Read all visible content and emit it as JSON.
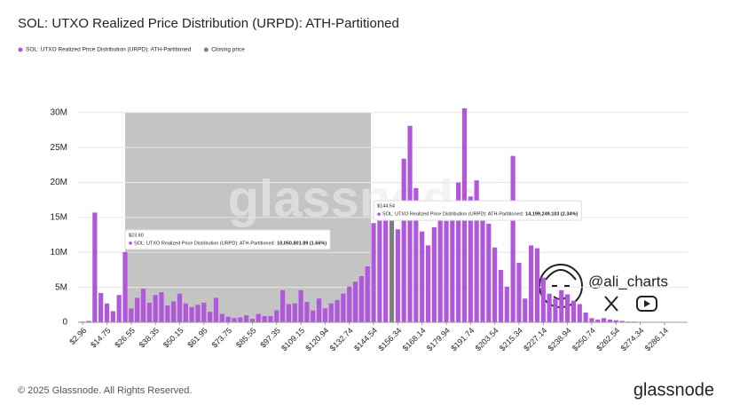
{
  "chart_data": {
    "type": "bar",
    "title": "SOL: UTXO Realized Price Distribution (URPD): ATH-Partitioned",
    "categories": [
      "$2.96",
      null,
      null,
      null,
      "$14.75",
      null,
      null,
      null,
      "$26.55",
      null,
      null,
      null,
      "$38.35",
      null,
      null,
      null,
      "$50.15",
      null,
      null,
      null,
      "$61.95",
      null,
      null,
      null,
      "$73.75",
      null,
      null,
      null,
      "$85.55",
      null,
      null,
      null,
      "$97.35",
      null,
      null,
      null,
      "$109.15",
      null,
      null,
      null,
      "$120.94",
      null,
      null,
      null,
      "$132.74",
      null,
      null,
      null,
      "$144.54",
      null,
      null,
      null,
      "$156.34",
      null,
      null,
      null,
      "$168.14",
      null,
      null,
      null,
      "$179.94",
      null,
      null,
      null,
      "$191.74",
      null,
      null,
      null,
      "$203.54",
      null,
      null,
      null,
      "$215.34",
      null,
      null,
      null,
      "$227.14",
      null,
      null,
      null,
      "$238.94",
      null,
      null,
      null,
      "$250.74",
      null,
      null,
      null,
      "$262.54",
      null,
      null,
      null,
      "$274.34",
      null,
      null,
      null,
      "$286.14",
      null,
      null,
      null
    ],
    "series": [
      {
        "name": "SOL: UTXO Realized Price Distribution (URPD): ATH-Partitioned",
        "color": "#b157dc",
        "values": [
          100000,
          200000,
          15700000,
          4200000,
          2700000,
          1600000,
          3900000,
          10050801.89,
          2000000,
          3500000,
          4800000,
          2800000,
          3900000,
          4300000,
          2400000,
          3000000,
          4100000,
          2700000,
          2200000,
          2500000,
          2800000,
          1500000,
          3500000,
          1200000,
          800000,
          600000,
          700000,
          1000000,
          500000,
          1200000,
          900000,
          900000,
          1700000,
          4600000,
          2600000,
          2700000,
          4600000,
          2900000,
          1700000,
          3400000,
          2000000,
          2700000,
          3200000,
          4100000,
          5100000,
          5800000,
          6600000,
          8000000,
          14199249.103,
          15800000,
          15200000,
          null,
          13300000,
          23400000,
          28100000,
          19200000,
          13000000,
          11000000,
          13600000,
          17000000,
          14500000,
          15400000,
          20000000,
          30600000,
          18000000,
          20300000,
          17400000,
          14100000,
          10700000,
          7500000,
          5100000,
          23800000,
          8500000,
          3400000,
          11000000,
          10600000,
          6400000,
          4100000,
          3400000,
          4600000,
          4000000,
          3100000,
          2600000,
          1400000,
          600000,
          400000,
          600000,
          400000,
          300000,
          200000,
          100000,
          100000,
          50000,
          50000,
          30000,
          30000,
          20000,
          20000,
          10000,
          10000
        ]
      },
      {
        "name": "Closing price",
        "color": "#808080",
        "values": [
          null,
          null,
          null,
          null,
          null,
          null,
          null,
          null,
          null,
          null,
          null,
          null,
          null,
          null,
          null,
          null,
          null,
          null,
          null,
          null,
          null,
          null,
          null,
          null,
          null,
          null,
          null,
          null,
          null,
          null,
          null,
          null,
          null,
          null,
          null,
          null,
          null,
          null,
          null,
          null,
          null,
          null,
          null,
          null,
          null,
          null,
          null,
          null,
          null,
          null,
          null,
          15600000,
          null,
          null,
          null,
          null,
          null,
          null,
          null,
          null,
          null,
          null,
          null,
          null,
          null,
          null,
          null,
          null,
          null,
          null,
          null,
          null,
          null,
          null,
          null,
          null,
          null,
          null,
          null,
          null,
          null,
          null,
          null,
          null,
          null,
          null,
          null,
          null,
          null,
          null,
          null,
          null,
          null,
          null,
          null,
          null,
          null,
          null,
          null,
          null
        ]
      }
    ],
    "ylim": [
      0,
      32000000
    ],
    "yticks": [
      0,
      {
        "value": 5000000,
        "label": "5M"
      },
      {
        "value": 10000000,
        "label": "10M"
      },
      {
        "value": 15000000,
        "label": "15M"
      },
      {
        "value": 20000000,
        "label": "20M"
      },
      {
        "value": 25000000,
        "label": "25M"
      },
      {
        "value": 30000000,
        "label": "30M"
      }
    ],
    "grid": true,
    "tooltips": [
      {
        "index": 7,
        "price": "$23.60",
        "label": "SOL: UTXO Realized Price Distribution (URPD): ATH-Partitioned:",
        "value": "10,050,801.89 (1.66%)"
      },
      {
        "index": 48,
        "price": "$144.54",
        "label": "SOL: UTXO Realized Price Distribution (URPD): ATH-Partitioned:",
        "value": "14,199,249.103 (2.34%)"
      }
    ],
    "watermark": "glassnode",
    "handle": "@ali_charts",
    "copyright": "© 2025 Glassnode. All Rights Reserved.",
    "brand": "glassnode"
  }
}
